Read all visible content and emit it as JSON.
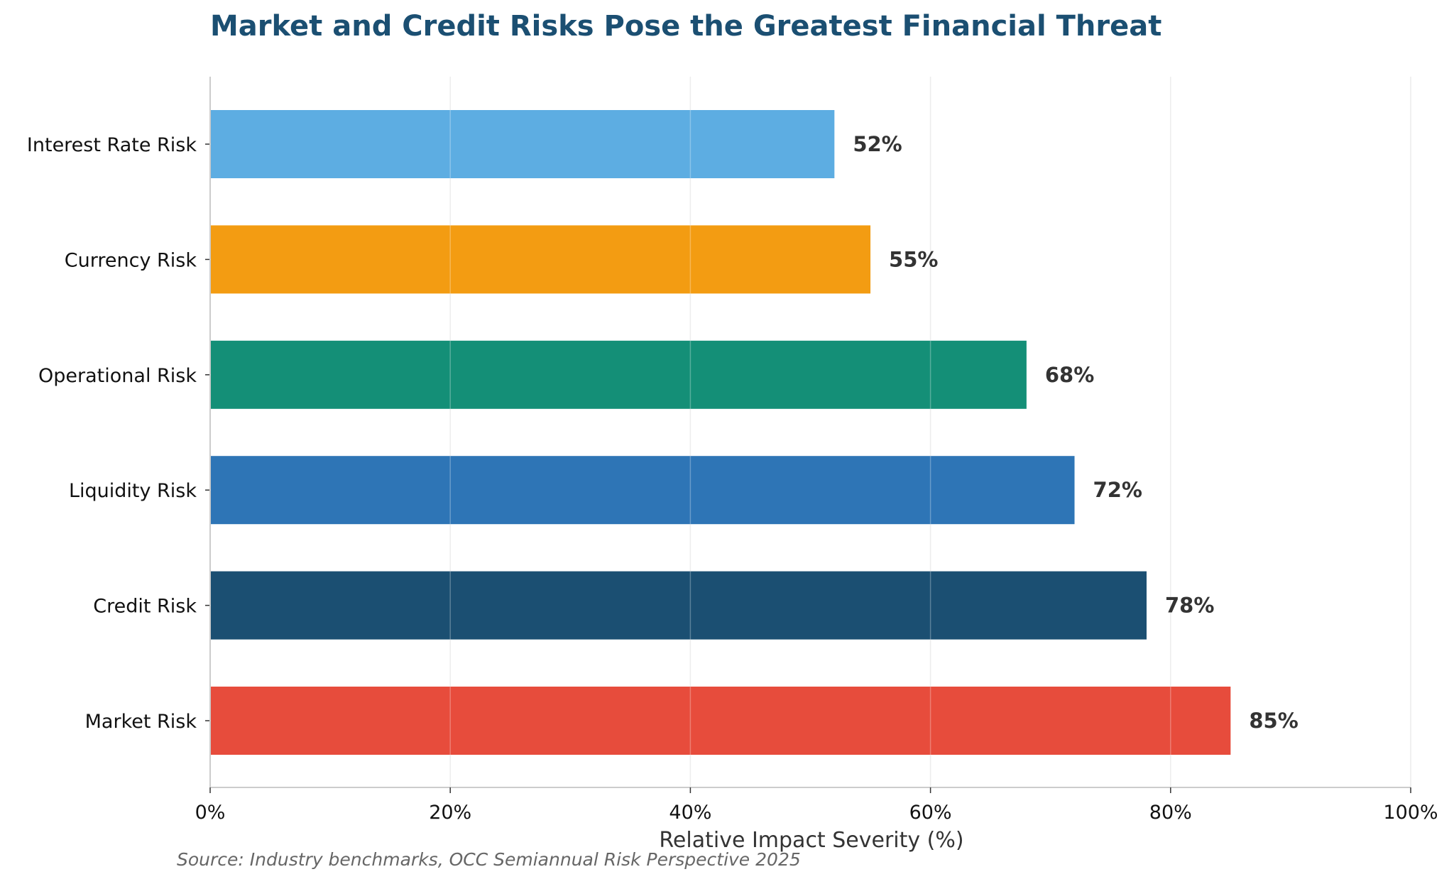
{
  "chart_data": {
    "type": "bar",
    "orientation": "horizontal",
    "title": "Market and Credit Risks Pose the Greatest Financial Threat",
    "xlabel": "Relative Impact Severity (%)",
    "ylabel": "",
    "source": "Source: Industry benchmarks, OCC Semiannual Risk Perspective 2025",
    "xlim": [
      0,
      100
    ],
    "x_ticks": [
      0,
      20,
      40,
      60,
      80,
      100
    ],
    "x_tick_labels": [
      "0%",
      "20%",
      "40%",
      "60%",
      "80%",
      "100%"
    ],
    "grid": "vertical",
    "categories": [
      "Interest Rate Risk",
      "Currency Risk",
      "Operational Risk",
      "Liquidity Risk",
      "Credit Risk",
      "Market Risk"
    ],
    "values": [
      52,
      55,
      68,
      72,
      78,
      85
    ],
    "value_labels": [
      "52%",
      "55%",
      "68%",
      "72%",
      "78%",
      "85%"
    ],
    "colors": [
      "#5dade2",
      "#f39c12",
      "#148f77",
      "#2e75b6",
      "#1b4f72",
      "#e74c3c"
    ]
  }
}
